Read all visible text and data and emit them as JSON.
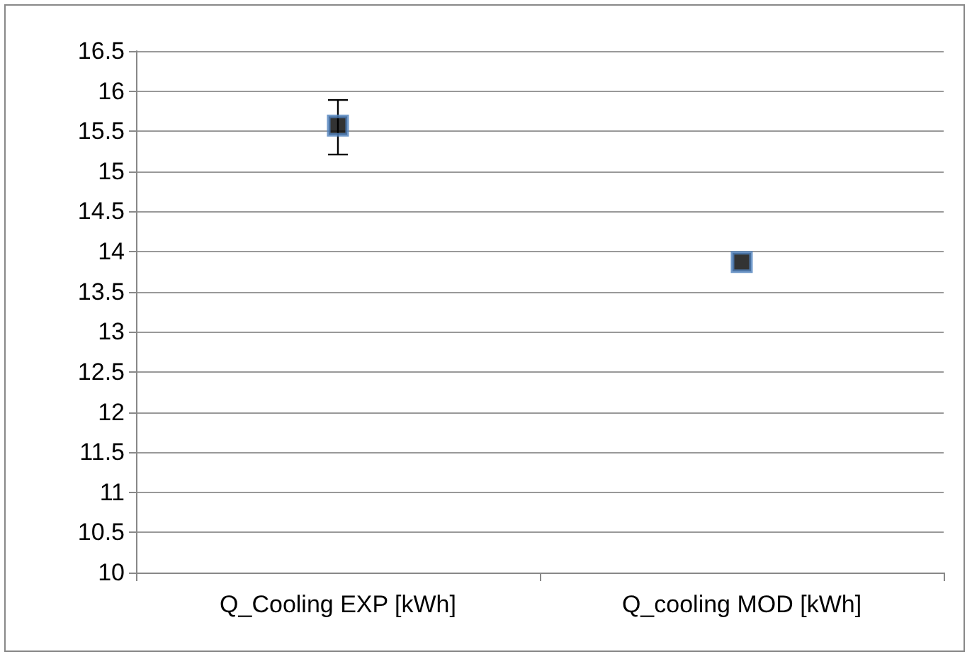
{
  "chart_data": {
    "type": "scatter",
    "categories": [
      "Q_Cooling EXP [kWh]",
      "Q_cooling MOD [kWh]"
    ],
    "series": [
      {
        "color": "#000000",
        "values": [
          15.57,
          13.87
        ],
        "errors": [
          [
            15.21,
            15.89
          ],
          null
        ]
      }
    ],
    "ylim": [
      10,
      16.5
    ],
    "yticks": [
      10,
      10.5,
      11,
      11.5,
      12,
      12.5,
      13,
      13.5,
      14,
      14.5,
      15,
      15.5,
      16,
      16.5
    ],
    "grid": "y",
    "marker": "square"
  }
}
